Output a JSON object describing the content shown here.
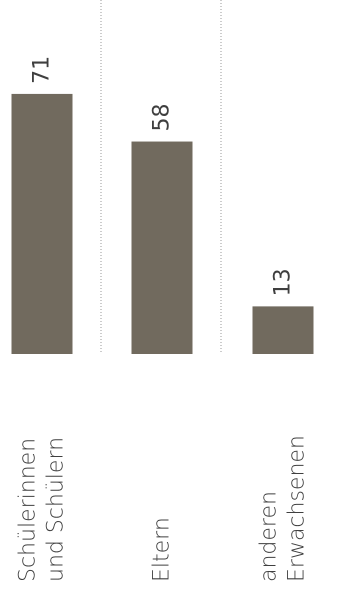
{
  "chart_data": {
    "type": "bar",
    "orientation": "vertical",
    "categories": [
      [
        "Schülerinnen",
        "und Schülern"
      ],
      [
        "Eltern"
      ],
      [
        "anderen",
        "Erwachsenen"
      ]
    ],
    "values": [
      71,
      58,
      13
    ],
    "value_labels": [
      "71",
      "58",
      "13"
    ],
    "ylim": [
      0,
      95
    ],
    "grid": false,
    "legend": "none",
    "bar_color": "#716a5e",
    "divider_color": "#9a9a9a",
    "text_color": "#3f3f3f"
  }
}
